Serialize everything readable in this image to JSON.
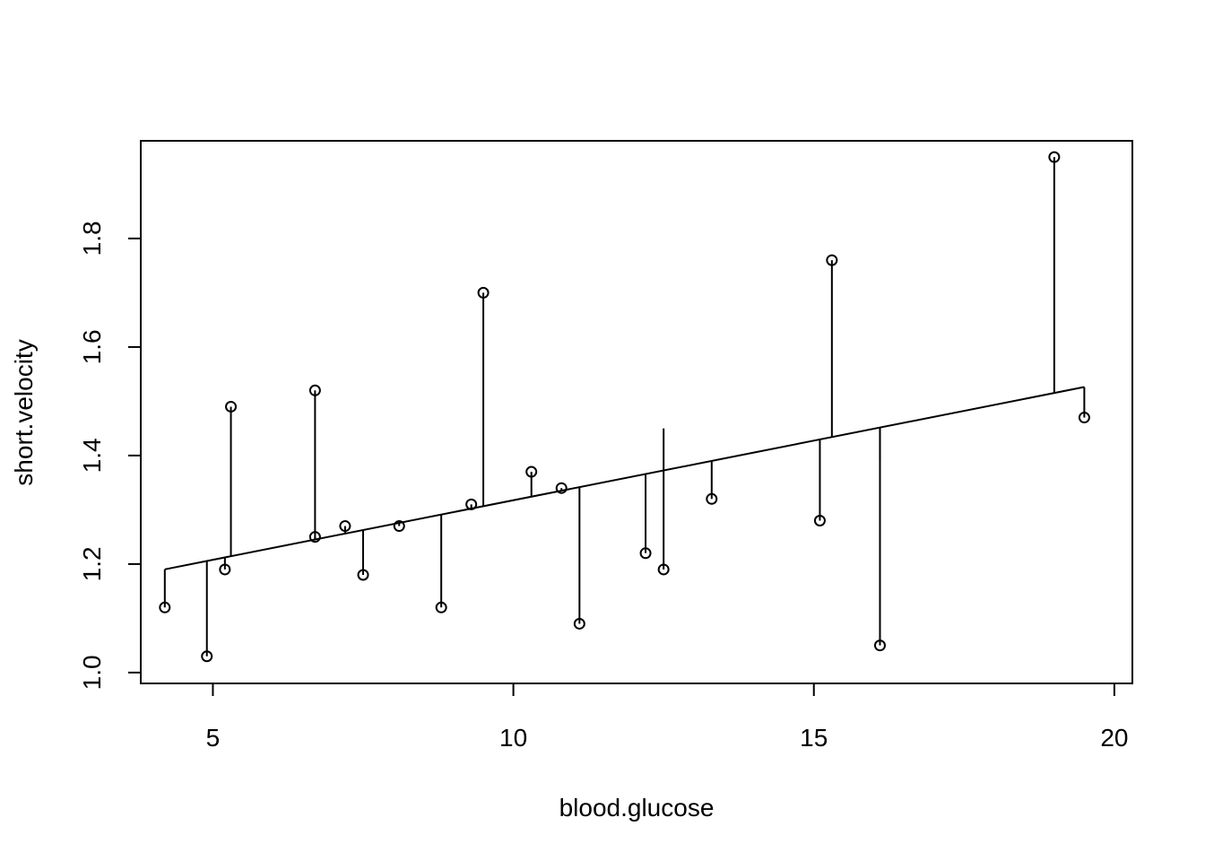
{
  "chart_data": {
    "type": "scatter",
    "title": "",
    "xlabel": "blood.glucose",
    "ylabel": "short.velocity",
    "xlim": [
      3.8,
      20.3
    ],
    "ylim": [
      0.98,
      1.98
    ],
    "x_ticks": [
      5,
      10,
      15,
      20
    ],
    "x_tick_labels": [
      "5",
      "10",
      "15",
      "20"
    ],
    "y_ticks": [
      1.0,
      1.2,
      1.4,
      1.6,
      1.8
    ],
    "y_tick_labels": [
      "1.0",
      "1.2",
      "1.4",
      "1.6",
      "1.8"
    ],
    "grid": false,
    "legend": "none",
    "regression_line": {
      "intercept": 1.098,
      "slope": 0.02196
    },
    "show_residual_segments": true,
    "points": [
      {
        "x": 4.2,
        "y": 1.12
      },
      {
        "x": 4.9,
        "y": 1.03
      },
      {
        "x": 5.2,
        "y": 1.19
      },
      {
        "x": 5.3,
        "y": 1.49
      },
      {
        "x": 6.7,
        "y": 1.52
      },
      {
        "x": 6.7,
        "y": 1.25
      },
      {
        "x": 7.2,
        "y": 1.27
      },
      {
        "x": 7.5,
        "y": 1.18
      },
      {
        "x": 8.1,
        "y": 1.27
      },
      {
        "x": 8.8,
        "y": 1.12
      },
      {
        "x": 9.3,
        "y": 1.31
      },
      {
        "x": 9.5,
        "y": 1.7
      },
      {
        "x": 10.3,
        "y": 1.37
      },
      {
        "x": 10.8,
        "y": 1.34
      },
      {
        "x": 11.1,
        "y": 1.09
      },
      {
        "x": 12.2,
        "y": 1.22
      },
      {
        "x": 12.5,
        "y": 1.19
      },
      {
        "x": 13.3,
        "y": 1.32
      },
      {
        "x": 15.1,
        "y": 1.28
      },
      {
        "x": 15.3,
        "y": 1.76
      },
      {
        "x": 16.1,
        "y": 1.05
      },
      {
        "x": 19.0,
        "y": 1.95
      },
      {
        "x": 19.5,
        "y": 1.47
      }
    ],
    "residual_only": [
      {
        "x": 12.5,
        "y": 1.45
      },
      {
        "x": 16.1,
        "y": 1.39
      }
    ],
    "colors": {
      "foreground": "#000000",
      "background": "#ffffff"
    }
  }
}
